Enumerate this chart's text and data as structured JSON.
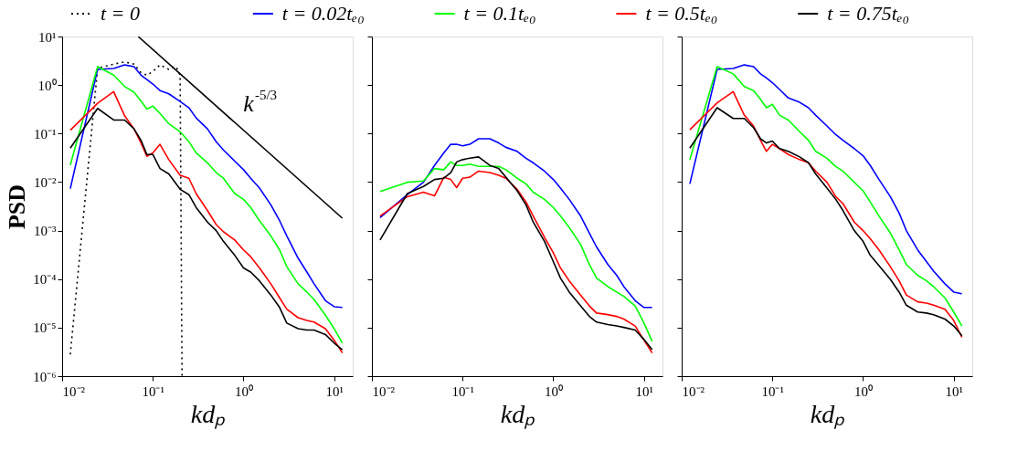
{
  "chart_data": [
    {
      "type": "line",
      "ylabel": "PSD",
      "xlabel": "kdₚ",
      "legend": "top",
      "grid": false,
      "xlim": [
        0.01,
        16
      ],
      "ylim": [
        1e-06,
        10
      ],
      "xticks": [
        {
          "value": 0.01,
          "label": "10⁻²"
        },
        {
          "value": 0.1,
          "label": "10⁻¹"
        },
        {
          "value": 1,
          "label": "10⁰"
        },
        {
          "value": 10,
          "label": "10¹"
        }
      ],
      "yticks": [
        {
          "value": 1e-06,
          "label": "10⁻⁶"
        },
        {
          "value": 1e-05,
          "label": "10⁻⁵"
        },
        {
          "value": 0.0001,
          "label": "10⁻⁴"
        },
        {
          "value": 0.001,
          "label": "10⁻³"
        },
        {
          "value": 0.01,
          "label": "10⁻²"
        },
        {
          "value": 0.1,
          "label": "10⁻¹"
        },
        {
          "value": 1,
          "label": "10⁰"
        },
        {
          "value": 10,
          "label": "10¹"
        }
      ],
      "log": "xy",
      "x": [
        0.0123,
        0.0246,
        0.037,
        0.049,
        0.062,
        0.074,
        0.086,
        0.1,
        0.12,
        0.15,
        0.2,
        0.25,
        0.3,
        0.4,
        0.5,
        0.6,
        0.8,
        1,
        1.2,
        1.5,
        2,
        2.5,
        3,
        4,
        5,
        6,
        8,
        10,
        12.3
      ],
      "annotations": [
        "k$^{-5/3}$"
      ],
      "series": [
        {
          "name": "t = 0",
          "color": "#000000",
          "line_style": "dotted",
          "x": [
            0.0123,
            0.0246,
            0.037,
            0.049,
            0.062,
            0.074,
            0.086,
            0.1,
            0.12,
            0.15,
            0.18,
            0.2,
            0.21
          ],
          "values": [
            2.8e-06,
            2.2,
            2.7,
            3.0,
            2.7,
            1.8,
            1.6,
            1.9,
            2.6,
            2.1,
            2.4,
            1.6,
            1e-06
          ]
        },
        {
          "name": "t = 0.02tₑ₀",
          "color": "#0000ff",
          "values": [
            0.0073,
            2.1,
            2.2,
            2.6,
            2.4,
            1.6,
            1.3,
            1.05,
            0.77,
            0.66,
            0.46,
            0.34,
            0.21,
            0.125,
            0.068,
            0.046,
            0.027,
            0.018,
            0.012,
            0.0075,
            0.0034,
            0.0016,
            0.00078,
            0.00027,
            0.00014,
            8e-05,
            3.6e-05,
            2.7e-05,
            2.6e-05
          ]
        },
        {
          "name": "t = 0.1tₑ₀",
          "color": "#00ff00",
          "values": [
            0.0225,
            2.4,
            1.6,
            0.93,
            0.71,
            0.47,
            0.32,
            0.37,
            0.26,
            0.16,
            0.109,
            0.068,
            0.04,
            0.025,
            0.0157,
            0.012,
            0.0058,
            0.0044,
            0.003,
            0.0016,
            0.00078,
            0.0004,
            0.00018,
            8e-05,
            5.4e-05,
            3.8e-05,
            1.8e-05,
            9.5e-06,
            4.8e-06
          ]
        },
        {
          "name": "t = 0.5tₑ₀",
          "color": "#ff0000",
          "values": [
            0.117,
            0.42,
            0.73,
            0.23,
            0.125,
            0.064,
            0.034,
            0.04,
            0.06,
            0.029,
            0.0138,
            0.012,
            0.0058,
            0.0026,
            0.00133,
            0.00095,
            0.00064,
            0.0004,
            0.00029,
            0.00017,
            8e-05,
            4.1e-05,
            2.4e-05,
            1.6e-05,
            1.4e-05,
            1.3e-05,
            9.5e-06,
            5.5e-06,
            3e-06
          ]
        },
        {
          "name": "t = 0.75tₑ₀",
          "color": "#000000",
          "values": [
            0.05,
            0.33,
            0.19,
            0.19,
            0.125,
            0.073,
            0.037,
            0.037,
            0.019,
            0.0147,
            0.0071,
            0.0055,
            0.003,
            0.0015,
            0.001,
            0.0006,
            0.00031,
            0.00017,
            0.00014,
            9.2e-05,
            4.7e-05,
            2.6e-05,
            1.24e-05,
            9.5e-06,
            8.9e-06,
            8.9e-06,
            7.2e-06,
            4.8e-06,
            3.5e-06
          ]
        },
        {
          "color": "#000000",
          "x": [
            0.069,
            12.3
          ],
          "values": [
            10,
            0.0018
          ]
        }
      ]
    },
    {
      "type": "line",
      "xlabel": "kdₚ",
      "grid": false,
      "tick_labels": "x",
      "xlim": [
        0.01,
        16
      ],
      "ylim": [
        1e-06,
        10
      ],
      "xticks": [
        {
          "value": 0.01,
          "label": "10⁻²"
        },
        {
          "value": 0.1,
          "label": "10⁻¹"
        },
        {
          "value": 1,
          "label": "10⁰"
        },
        {
          "value": 10,
          "label": "10¹"
        }
      ],
      "yticks": [
        {
          "value": 1e-06,
          "label": null
        },
        {
          "value": 1e-05,
          "label": null
        },
        {
          "value": 0.0001,
          "label": null
        },
        {
          "value": 0.001,
          "label": null
        },
        {
          "value": 0.01,
          "label": null
        },
        {
          "value": 0.1,
          "label": null
        },
        {
          "value": 1,
          "label": null
        },
        {
          "value": 10,
          "label": null
        }
      ],
      "log": "xy",
      "x": [
        0.0123,
        0.0246,
        0.037,
        0.049,
        0.062,
        0.074,
        0.086,
        0.1,
        0.12,
        0.15,
        0.2,
        0.25,
        0.3,
        0.4,
        0.5,
        0.6,
        0.8,
        1,
        1.2,
        1.5,
        2,
        2.5,
        3,
        4,
        5,
        6,
        8,
        10,
        12.3
      ],
      "series": [
        {
          "color": "#0000ff",
          "values": [
            0.00185,
            0.0055,
            0.0099,
            0.022,
            0.04,
            0.06,
            0.06,
            0.056,
            0.06,
            0.078,
            0.078,
            0.064,
            0.052,
            0.043,
            0.031,
            0.025,
            0.0168,
            0.0113,
            0.0075,
            0.0044,
            0.002,
            0.00089,
            0.00046,
            0.0002,
            0.00012,
            7e-05,
            3.6e-05,
            2.6e-05,
            2.6e-05
          ]
        },
        {
          "color": "#00ff00",
          "values": [
            0.0064,
            0.0099,
            0.0105,
            0.019,
            0.018,
            0.026,
            0.022,
            0.022,
            0.0235,
            0.021,
            0.021,
            0.021,
            0.018,
            0.012,
            0.0092,
            0.0062,
            0.0044,
            0.003,
            0.002,
            0.00116,
            0.00052,
            0.0002,
            0.000105,
            7e-05,
            5.4e-05,
            4.4e-05,
            2.8e-05,
            1.24e-05,
            5.2e-06
          ]
        },
        {
          "color": "#ff0000",
          "values": [
            0.002,
            0.005,
            0.0062,
            0.0052,
            0.0125,
            0.0113,
            0.0077,
            0.012,
            0.0126,
            0.0168,
            0.0157,
            0.0138,
            0.012,
            0.0071,
            0.0039,
            0.002,
            0.00073,
            0.00035,
            0.00017,
            9.2e-05,
            4.7e-05,
            2.8e-05,
            2e-05,
            1.85e-05,
            1.7e-05,
            1.5e-05,
            1.08e-05,
            5.5e-06,
            3e-06
          ]
        },
        {
          "color": "#000000",
          "values": [
            0.00064,
            0.0058,
            0.0081,
            0.0113,
            0.012,
            0.0157,
            0.026,
            0.029,
            0.031,
            0.033,
            0.022,
            0.019,
            0.0126,
            0.0066,
            0.0034,
            0.0015,
            0.0006,
            0.00023,
            0.000105,
            5.4e-05,
            2.8e-05,
            1.7e-05,
            1.3e-05,
            1.16e-05,
            1.08e-05,
            1.01e-05,
            8.9e-06,
            5.7e-06,
            3.5e-06
          ]
        }
      ]
    },
    {
      "type": "line",
      "xlabel": "kdₚ",
      "grid": false,
      "tick_labels": "x",
      "xlim": [
        0.01,
        16
      ],
      "ylim": [
        1e-06,
        10
      ],
      "xticks": [
        {
          "value": 0.01,
          "label": "10⁻²"
        },
        {
          "value": 0.1,
          "label": "10⁻¹"
        },
        {
          "value": 1,
          "label": "10⁰"
        },
        {
          "value": 10,
          "label": "10¹"
        }
      ],
      "yticks": [
        {
          "value": 1e-06,
          "label": null
        },
        {
          "value": 1e-05,
          "label": null
        },
        {
          "value": 0.0001,
          "label": null
        },
        {
          "value": 0.001,
          "label": null
        },
        {
          "value": 0.01,
          "label": null
        },
        {
          "value": 0.1,
          "label": null
        },
        {
          "value": 1,
          "label": null
        },
        {
          "value": 10,
          "label": null
        }
      ],
      "log": "xy",
      "x": [
        0.0123,
        0.0246,
        0.037,
        0.049,
        0.062,
        0.074,
        0.086,
        0.1,
        0.12,
        0.15,
        0.2,
        0.25,
        0.3,
        0.4,
        0.5,
        0.6,
        0.8,
        1,
        1.2,
        1.5,
        2,
        2.5,
        3,
        4,
        5,
        6,
        8,
        10,
        12.3
      ],
      "series": [
        {
          "color": "#0000ff",
          "values": [
            0.0092,
            2.1,
            2.2,
            2.6,
            2.4,
            1.7,
            1.4,
            1.12,
            0.81,
            0.54,
            0.44,
            0.34,
            0.24,
            0.143,
            0.095,
            0.073,
            0.049,
            0.035,
            0.022,
            0.0113,
            0.005,
            0.0023,
            0.001,
            0.0004,
            0.00023,
            0.000146,
            8e-05,
            5.4e-05,
            5e-05
          ]
        },
        {
          "color": "#00ff00",
          "values": [
            0.029,
            2.4,
            1.7,
            0.93,
            0.77,
            0.51,
            0.34,
            0.4,
            0.24,
            0.19,
            0.109,
            0.073,
            0.043,
            0.031,
            0.021,
            0.0168,
            0.0099,
            0.0066,
            0.0039,
            0.002,
            0.00089,
            0.0004,
            0.0002,
            0.00012,
            9.2e-05,
            7e-05,
            4.1e-05,
            2.1e-05,
            1.08e-05
          ]
        },
        {
          "color": "#ff0000",
          "values": [
            0.12,
            0.43,
            0.73,
            0.24,
            0.143,
            0.073,
            0.043,
            0.06,
            0.049,
            0.037,
            0.029,
            0.025,
            0.0168,
            0.0099,
            0.005,
            0.0036,
            0.0015,
            0.001,
            0.00068,
            0.0004,
            0.00018,
            9.2e-05,
            4.7e-05,
            3.4e-05,
            3.2e-05,
            2.9e-05,
            2.4e-05,
            1.4e-05,
            6.3e-06
          ]
        },
        {
          "color": "#000000",
          "values": [
            0.05,
            0.34,
            0.205,
            0.205,
            0.133,
            0.078,
            0.064,
            0.07,
            0.049,
            0.043,
            0.033,
            0.025,
            0.0147,
            0.0075,
            0.0044,
            0.0026,
            0.001,
            0.0006,
            0.00031,
            0.00019,
            9.9e-05,
            5.4e-05,
            2.9e-05,
            2.1e-05,
            2e-05,
            1.85e-05,
            1.5e-05,
            1.08e-05,
            6.8e-06
          ]
        }
      ]
    }
  ]
}
